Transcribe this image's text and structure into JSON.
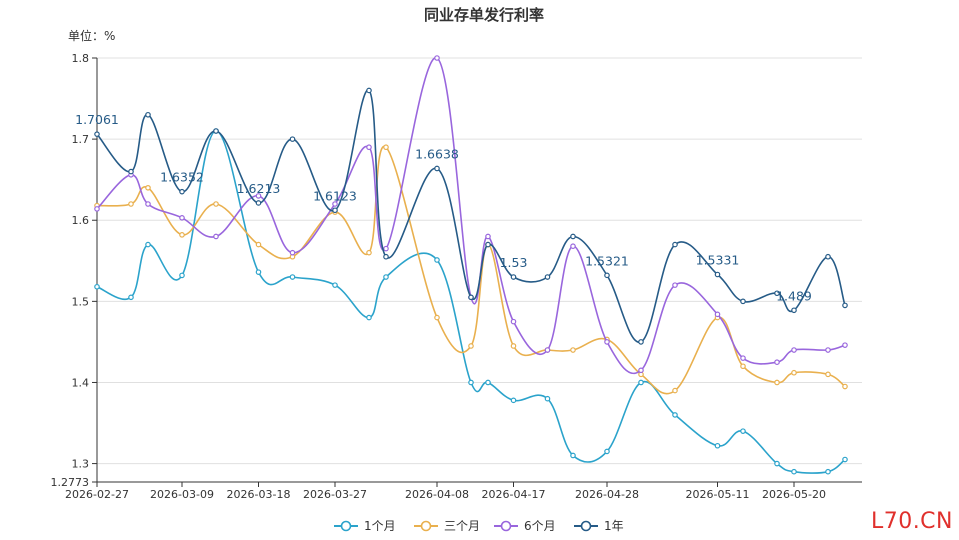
{
  "watermark": "L70.CN",
  "chart_data": {
    "type": "line",
    "title": "同业存单发行利率",
    "unit_label": "单位：%",
    "ylim": [
      1.2773,
      1.8
    ],
    "yticks": [
      "1.8",
      "1.7",
      "1.6",
      "1.5",
      "1.4",
      "1.3",
      "1.2773"
    ],
    "xticks": [
      "2026-02-27",
      "2026-03-09",
      "2026-03-18",
      "2026-03-27",
      "2026-04-08",
      "2026-04-17",
      "2026-04-28",
      "2026-05-11",
      "2026-05-20"
    ],
    "x": [
      "2026-02-27",
      "2026-03-03",
      "2026-03-05",
      "2026-03-09",
      "2026-03-13",
      "2026-03-18",
      "2026-03-22",
      "2026-03-27",
      "2026-03-31",
      "2026-04-02",
      "2026-04-08",
      "2026-04-12",
      "2026-04-14",
      "2026-04-17",
      "2026-04-21",
      "2026-04-24",
      "2026-04-28",
      "2026-05-02",
      "2026-05-06",
      "2026-05-11",
      "2026-05-14",
      "2026-05-18",
      "2026-05-20",
      "2026-05-24",
      "2026-05-26"
    ],
    "series": [
      {
        "name": "1个月",
        "color": "#2ba3cb",
        "values": [
          1.518,
          1.505,
          1.57,
          1.532,
          1.71,
          1.536,
          1.53,
          1.52,
          1.48,
          1.53,
          1.551,
          1.4,
          1.4,
          1.378,
          1.38,
          1.31,
          1.315,
          1.4,
          1.36,
          1.322,
          1.34,
          1.3,
          1.29,
          1.29,
          1.305
        ]
      },
      {
        "name": "三个月",
        "color": "#e9b04e",
        "values": [
          1.618,
          1.62,
          1.64,
          1.582,
          1.62,
          1.57,
          1.555,
          1.61,
          1.56,
          1.69,
          1.48,
          1.445,
          1.57,
          1.445,
          1.44,
          1.44,
          1.453,
          1.41,
          1.39,
          1.48,
          1.42,
          1.4,
          1.412,
          1.41,
          1.395
        ]
      },
      {
        "name": "6个月",
        "color": "#9966dd",
        "values": [
          1.614,
          1.656,
          1.62,
          1.603,
          1.58,
          1.63,
          1.56,
          1.62,
          1.69,
          1.565,
          1.8,
          1.505,
          1.58,
          1.475,
          1.44,
          1.568,
          1.45,
          1.415,
          1.52,
          1.484,
          1.43,
          1.425,
          1.44,
          1.44,
          1.446
        ]
      },
      {
        "name": "1年",
        "color": "#265b87",
        "values": [
          1.7061,
          1.66,
          1.73,
          1.6352,
          1.71,
          1.6213,
          1.7,
          1.6123,
          1.76,
          1.555,
          1.6638,
          1.505,
          1.57,
          1.53,
          1.53,
          1.58,
          1.5321,
          1.45,
          1.57,
          1.5331,
          1.5,
          1.51,
          1.489,
          1.555,
          1.495
        ]
      }
    ],
    "data_labels": [
      {
        "series": "1年",
        "index": 0,
        "text": "1.7061"
      },
      {
        "series": "1年",
        "index": 3,
        "text": "1.6352"
      },
      {
        "series": "1年",
        "index": 5,
        "text": "1.6213"
      },
      {
        "series": "1年",
        "index": 7,
        "text": "1.6123"
      },
      {
        "series": "1年",
        "index": 10,
        "text": "1.6638"
      },
      {
        "series": "1年",
        "index": 13,
        "text": "1.53"
      },
      {
        "series": "1年",
        "index": 16,
        "text": "1.5321"
      },
      {
        "series": "1年",
        "index": 19,
        "text": "1.5331"
      },
      {
        "series": "1年",
        "index": 22,
        "text": "1.489"
      }
    ],
    "legend": [
      "1个月",
      "三个月",
      "6个月",
      "1年"
    ],
    "legend_position": "bottom-center",
    "grid": true
  }
}
